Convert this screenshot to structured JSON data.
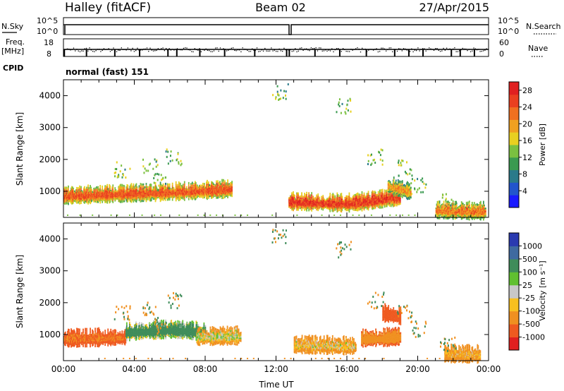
{
  "header": {
    "station": "Halley (fitACF)",
    "beam": "Beam 02",
    "date": "27/Apr/2015"
  },
  "strips": {
    "nsky_label": "N.Sky",
    "nsky_ticks": [
      "10^5",
      "10^0"
    ],
    "nsearch_label": "N.Search",
    "nsearch_ticks": [
      "10^5",
      "10^0"
    ],
    "freq_label": "Freq.",
    "freq_unit": "[MHz]",
    "freq_ticks": [
      "18",
      "8"
    ],
    "nave_label": "Nave",
    "nave_ticks": [
      "60",
      "0"
    ],
    "cpid_label": "CPID",
    "cpid_value": "normal (fast) 151"
  },
  "chart_data": [
    {
      "type": "heatmap",
      "panel": "power",
      "xlabel": "",
      "ylabel": "Slant Range [km]",
      "xlim": [
        0,
        24
      ],
      "ylim": [
        180,
        4500
      ],
      "y_ticks": [
        "1000",
        "2000",
        "3000",
        "4000"
      ],
      "colorbar_label": "Power [dB]",
      "colorbar_ticks": [
        "4",
        "8",
        "12",
        "16",
        "20",
        "24",
        "28"
      ],
      "colorbar_range": [
        0,
        30
      ],
      "colorbar_colors": [
        "#1a1aff",
        "#2255cc",
        "#2a7a8a",
        "#3a9a50",
        "#7ac040",
        "#e8d020",
        "#f0a020",
        "#f07020",
        "#ea4020",
        "#e02020"
      ],
      "series": [
        {
          "x": [
            0,
            1,
            2,
            3,
            4,
            5,
            6,
            7,
            8,
            9,
            9.5
          ],
          "values": [
            780,
            800,
            820,
            840,
            860,
            880,
            900,
            920,
            950,
            980,
            1000
          ],
          "level": 24
        },
        {
          "x": [
            12.7,
            14,
            15,
            16,
            17,
            18,
            19
          ],
          "values": [
            600,
            580,
            560,
            550,
            600,
            680,
            760
          ],
          "level": 26
        },
        {
          "x": [
            18.3,
            19,
            19.6
          ],
          "values": [
            1100,
            1000,
            900
          ],
          "level": 20
        },
        {
          "x": [
            21,
            22,
            23,
            23.8
          ],
          "values": [
            330,
            320,
            300,
            300
          ],
          "level": 22
        }
      ]
    },
    {
      "type": "heatmap",
      "panel": "velocity",
      "xlabel": "Time UT",
      "ylabel": "Slant Range [km]",
      "xlim": [
        0,
        24
      ],
      "ylim": [
        180,
        4500
      ],
      "x_ticks": [
        "00:00",
        "04:00",
        "08:00",
        "12:00",
        "16:00",
        "20:00",
        "00:00"
      ],
      "y_ticks": [
        "1000",
        "2000",
        "3000",
        "4000"
      ],
      "colorbar_label": "Velocity [m s⁻¹]",
      "colorbar_ticks": [
        "1000",
        "500",
        "100",
        "25",
        "-25",
        "-100",
        "-500",
        "-1000"
      ],
      "colorbar_colors": [
        "#2a3ab0",
        "#3f6aa0",
        "#3f8c5a",
        "#60c030",
        "#c8c8c8",
        "#f8c020",
        "#f09020",
        "#ef5a20",
        "#e02020"
      ],
      "series": [
        {
          "x": [
            0,
            2,
            3.5
          ],
          "values": [
            800,
            820,
            840
          ],
          "level": -500
        },
        {
          "x": [
            3.5,
            5,
            6,
            7,
            8
          ],
          "values": [
            1000,
            1050,
            1080,
            1050,
            1000
          ],
          "level": 300
        },
        {
          "x": [
            7.5,
            9,
            10
          ],
          "values": [
            850,
            870,
            880
          ],
          "level": 0
        },
        {
          "x": [
            13,
            15,
            16.5
          ],
          "values": [
            600,
            580,
            560
          ],
          "level": -50
        },
        {
          "x": [
            16.8,
            18,
            19
          ],
          "values": [
            800,
            820,
            860
          ],
          "level": -300
        },
        {
          "x": [
            18,
            19
          ],
          "values": [
            1600,
            1500
          ],
          "level": -600
        },
        {
          "x": [
            21.5,
            23.5
          ],
          "values": [
            320,
            300
          ],
          "level": -100
        }
      ]
    }
  ]
}
